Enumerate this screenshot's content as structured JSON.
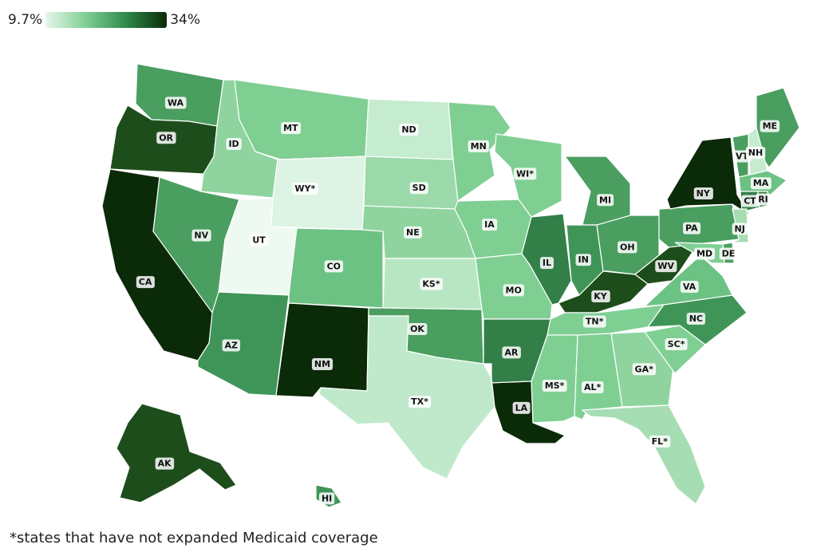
{
  "legend": {
    "min_label": "9.7%",
    "max_label": "34%",
    "min_value": 9.7,
    "max_value": 34,
    "colors": [
      "#e6f7ea",
      "#7fcf93",
      "#2e8a4a",
      "#0b2a08"
    ]
  },
  "footnote": "*states that have not expanded Medicaid coverage",
  "states": [
    {
      "abbr": "WA",
      "label": "WA",
      "color": "#4a9e60"
    },
    {
      "abbr": "OR",
      "label": "OR",
      "color": "#1e4d1c"
    },
    {
      "abbr": "CA",
      "label": "CA",
      "color": "#0b2a08"
    },
    {
      "abbr": "ID",
      "label": "ID",
      "color": "#8fd49f"
    },
    {
      "abbr": "NV",
      "label": "NV",
      "color": "#4a9e60"
    },
    {
      "abbr": "MT",
      "label": "MT",
      "color": "#7fcf93"
    },
    {
      "abbr": "WY",
      "label": "WY*",
      "color": "#ddf3e3"
    },
    {
      "abbr": "UT",
      "label": "UT",
      "color": "#eefaf1"
    },
    {
      "abbr": "AZ",
      "label": "AZ",
      "color": "#3f9558"
    },
    {
      "abbr": "CO",
      "label": "CO",
      "color": "#6cc283"
    },
    {
      "abbr": "NM",
      "label": "NM",
      "color": "#0b2a08"
    },
    {
      "abbr": "ND",
      "label": "ND",
      "color": "#c5eccf"
    },
    {
      "abbr": "SD",
      "label": "SD",
      "color": "#9bd9aa"
    },
    {
      "abbr": "NE",
      "label": "NE",
      "color": "#8fd49f"
    },
    {
      "abbr": "KS",
      "label": "KS*",
      "color": "#b8e6c3"
    },
    {
      "abbr": "OK",
      "label": "OK",
      "color": "#4a9e60"
    },
    {
      "abbr": "TX",
      "label": "TX*",
      "color": "#bfe9ca"
    },
    {
      "abbr": "MN",
      "label": "MN",
      "color": "#7fcf93"
    },
    {
      "abbr": "IA",
      "label": "IA",
      "color": "#7fcf93"
    },
    {
      "abbr": "MO",
      "label": "MO",
      "color": "#7fcf93"
    },
    {
      "abbr": "AR",
      "label": "AR",
      "color": "#327f48"
    },
    {
      "abbr": "LA",
      "label": "LA",
      "color": "#0b2a08"
    },
    {
      "abbr": "WI",
      "label": "WI*",
      "color": "#7fcf93"
    },
    {
      "abbr": "IL",
      "label": "IL",
      "color": "#327f48"
    },
    {
      "abbr": "MI",
      "label": "MI",
      "color": "#4a9e60"
    },
    {
      "abbr": "IN",
      "label": "IN",
      "color": "#3f9558"
    },
    {
      "abbr": "OH",
      "label": "OH",
      "color": "#4a9e60"
    },
    {
      "abbr": "KY",
      "label": "KY",
      "color": "#1e4d1c"
    },
    {
      "abbr": "TN",
      "label": "TN*",
      "color": "#7fcf93"
    },
    {
      "abbr": "MS",
      "label": "MS*",
      "color": "#7fcf93"
    },
    {
      "abbr": "AL",
      "label": "AL*",
      "color": "#7fcf93"
    },
    {
      "abbr": "GA",
      "label": "GA*",
      "color": "#8fd49f"
    },
    {
      "abbr": "FL",
      "label": "FL*",
      "color": "#a6ddb3"
    },
    {
      "abbr": "SC",
      "label": "SC*",
      "color": "#7fcf93"
    },
    {
      "abbr": "NC",
      "label": "NC",
      "color": "#3f9558"
    },
    {
      "abbr": "VA",
      "label": "VA",
      "color": "#6cc283"
    },
    {
      "abbr": "WV",
      "label": "WV",
      "color": "#1e4d1c"
    },
    {
      "abbr": "PA",
      "label": "PA",
      "color": "#4a9e60"
    },
    {
      "abbr": "NY",
      "label": "NY",
      "color": "#0b2a08"
    },
    {
      "abbr": "ME",
      "label": "ME",
      "color": "#4a9e60"
    },
    {
      "abbr": "VT",
      "label": "VT",
      "color": "#4a9e60"
    },
    {
      "abbr": "NH",
      "label": "NH",
      "color": "#c5eccf"
    },
    {
      "abbr": "MA",
      "label": "MA",
      "color": "#6cc283"
    },
    {
      "abbr": "CT",
      "label": "CT",
      "color": "#327f48"
    },
    {
      "abbr": "RI",
      "label": "RI",
      "color": "#327f48"
    },
    {
      "abbr": "NJ",
      "label": "NJ",
      "color": "#a6ddb3"
    },
    {
      "abbr": "DE",
      "label": "DE",
      "color": "#4a9e60"
    },
    {
      "abbr": "MD",
      "label": "MD",
      "color": "#7fcf93"
    },
    {
      "abbr": "AK",
      "label": "AK",
      "color": "#1e4d1c"
    },
    {
      "abbr": "HI",
      "label": "HI",
      "color": "#3f9558"
    }
  ]
}
